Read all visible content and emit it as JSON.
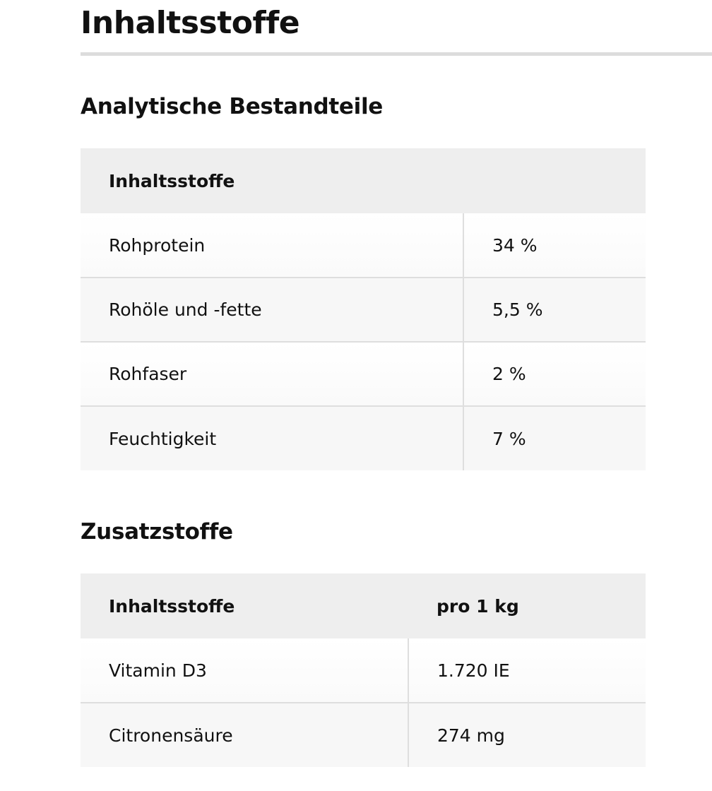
{
  "title": "Inhaltsstoffe",
  "analytical": {
    "heading": "Analytische Bestandteile",
    "header": "Inhaltsstoffe",
    "rows": [
      {
        "name": "Rohprotein",
        "value": "34 %"
      },
      {
        "name": "Rohöle und -fette",
        "value": "5,5 %"
      },
      {
        "name": "Rohfaser",
        "value": "2 %"
      },
      {
        "name": "Feuchtigkeit",
        "value": "7 %"
      }
    ]
  },
  "additives": {
    "heading": "Zusatzstoffe",
    "header_name": "Inhaltsstoffe",
    "header_value": "pro 1 kg",
    "rows": [
      {
        "name": "Vitamin D3",
        "value": "1.720 IE"
      },
      {
        "name": "Citronensäure",
        "value": "274 mg"
      }
    ]
  }
}
